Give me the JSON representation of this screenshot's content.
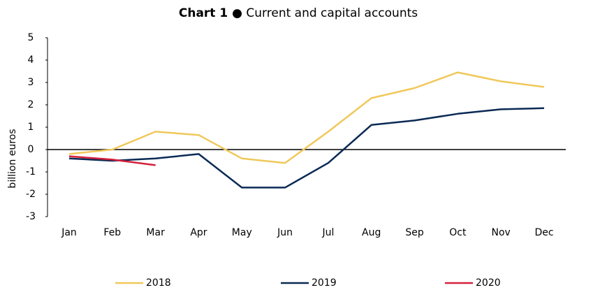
{
  "chart_data": {
    "type": "line",
    "title_number": "Chart 1",
    "title": "● Current and capital accounts",
    "y_label": "billion euros",
    "categories": [
      "Jan",
      "Feb",
      "Mar",
      "Apr",
      "May",
      "Jun",
      "Jul",
      "Aug",
      "Sep",
      "Oct",
      "Nov",
      "Dec"
    ],
    "series": [
      {
        "name": "2018",
        "color": "#f0c85a",
        "values": [
          -0.2,
          0,
          0.8,
          0.65,
          -0.4,
          -0.6,
          0.8,
          2.3,
          2.75,
          3.45,
          3.05,
          2.8
        ]
      },
      {
        "name": "2019",
        "color": "#0b2a55",
        "values": [
          -0.4,
          -0.5,
          -0.4,
          -0.2,
          -1.7,
          -1.7,
          -0.6,
          1.1,
          1.3,
          1.6,
          1.8,
          1.85
        ]
      },
      {
        "name": "2020",
        "color": "#d4213d",
        "values": [
          -0.3,
          -0.45,
          -0.7,
          null,
          null,
          null,
          null,
          null,
          null,
          null,
          null,
          null
        ]
      }
    ],
    "ylim": [
      -3,
      5
    ],
    "yticks": [
      -3,
      -2,
      -1,
      0,
      1,
      2,
      3,
      4,
      5
    ],
    "grid": false,
    "legend": "bottom"
  }
}
